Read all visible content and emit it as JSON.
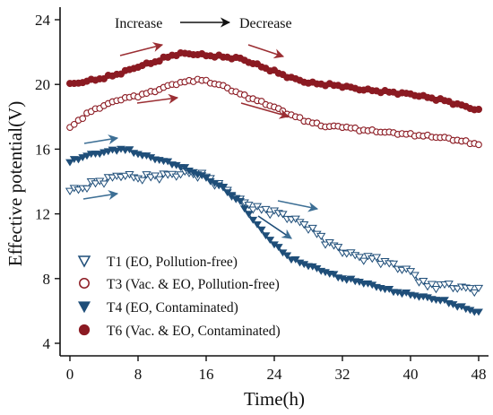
{
  "chart_data": {
    "type": "scatter",
    "xlabel": "Time(h)",
    "ylabel": "Effective potential(V)",
    "xlim": [
      -1,
      49
    ],
    "ylim": [
      3.4,
      25.1
    ],
    "xticks": [
      "0",
      "8",
      "16",
      "24",
      "32",
      "40",
      "48"
    ],
    "yticks": [
      "4",
      "8",
      "12",
      "16",
      "20",
      "24"
    ],
    "grid": false,
    "legend_position": "bottom-left",
    "annotations": {
      "increase": "Increase",
      "decrease": "Decrease"
    },
    "colors": {
      "blue": "#1f4e79",
      "red": "#8b1a22",
      "blue_arrow": "#3d6f95",
      "red_arrow": "#9b2e33"
    },
    "series": [
      {
        "name": "T1 (EO, Pollution-free)",
        "marker": "triangle-down-open",
        "color": "#1f4e79",
        "anchors": [
          [
            0,
            13.4
          ],
          [
            1,
            13.5
          ],
          [
            3,
            13.9
          ],
          [
            5,
            14.2
          ],
          [
            6,
            14.4
          ],
          [
            8,
            14.2
          ],
          [
            10,
            14.3
          ],
          [
            14,
            14.5
          ],
          [
            16,
            14.3
          ],
          [
            18,
            13.6
          ],
          [
            20,
            12.8
          ],
          [
            22,
            12.3
          ],
          [
            24,
            12.1
          ],
          [
            26,
            11.7
          ],
          [
            28,
            11.2
          ],
          [
            30,
            10.3
          ],
          [
            32,
            9.7
          ],
          [
            34,
            9.3
          ],
          [
            36,
            9.2
          ],
          [
            38,
            8.8
          ],
          [
            40,
            8.4
          ],
          [
            42,
            7.5
          ],
          [
            44,
            7.6
          ],
          [
            46,
            7.4
          ],
          [
            48,
            7.3
          ]
        ]
      },
      {
        "name": "T3 (Vac. & EO, Pollution-free)",
        "marker": "circle-open",
        "color": "#8b1a22",
        "anchors": [
          [
            0,
            17.3
          ],
          [
            2,
            18.2
          ],
          [
            4,
            18.7
          ],
          [
            6,
            19.1
          ],
          [
            8,
            19.3
          ],
          [
            10,
            19.6
          ],
          [
            12,
            20.0
          ],
          [
            14,
            20.2
          ],
          [
            15,
            20.3
          ],
          [
            16,
            20.2
          ],
          [
            18,
            19.9
          ],
          [
            20,
            19.4
          ],
          [
            22,
            19.0
          ],
          [
            24,
            18.6
          ],
          [
            26,
            18.1
          ],
          [
            28,
            17.7
          ],
          [
            30,
            17.4
          ],
          [
            32,
            17.4
          ],
          [
            34,
            17.2
          ],
          [
            36,
            17.1
          ],
          [
            38,
            17.0
          ],
          [
            40,
            16.9
          ],
          [
            42,
            16.8
          ],
          [
            44,
            16.7
          ],
          [
            46,
            16.5
          ],
          [
            48,
            16.3
          ]
        ]
      },
      {
        "name": "T4 (EO, Contaminated)",
        "marker": "triangle-down-filled",
        "color": "#1f4e79",
        "anchors": [
          [
            0,
            15.2
          ],
          [
            2,
            15.6
          ],
          [
            4,
            15.8
          ],
          [
            6,
            16.0
          ],
          [
            7,
            15.9
          ],
          [
            8,
            15.7
          ],
          [
            10,
            15.4
          ],
          [
            12,
            15.1
          ],
          [
            14,
            14.7
          ],
          [
            16,
            14.2
          ],
          [
            18,
            13.6
          ],
          [
            20,
            12.7
          ],
          [
            22,
            11.3
          ],
          [
            24,
            10.1
          ],
          [
            26,
            9.2
          ],
          [
            28,
            8.8
          ],
          [
            30,
            8.4
          ],
          [
            32,
            8.0
          ],
          [
            34,
            7.8
          ],
          [
            36,
            7.5
          ],
          [
            38,
            7.2
          ],
          [
            40,
            7.0
          ],
          [
            42,
            6.8
          ],
          [
            44,
            6.6
          ],
          [
            46,
            6.2
          ],
          [
            48,
            5.9
          ]
        ]
      },
      {
        "name": "T6 (Vac. & EO, Contaminated)",
        "marker": "circle-filled",
        "color": "#8b1a22",
        "anchors": [
          [
            0,
            20.0
          ],
          [
            2,
            20.2
          ],
          [
            4,
            20.4
          ],
          [
            6,
            20.7
          ],
          [
            8,
            21.1
          ],
          [
            10,
            21.4
          ],
          [
            12,
            21.8
          ],
          [
            13,
            21.9
          ],
          [
            14,
            21.9
          ],
          [
            16,
            21.8
          ],
          [
            18,
            21.7
          ],
          [
            20,
            21.6
          ],
          [
            22,
            21.2
          ],
          [
            24,
            20.8
          ],
          [
            26,
            20.4
          ],
          [
            28,
            20.1
          ],
          [
            30,
            20.0
          ],
          [
            32,
            19.9
          ],
          [
            34,
            19.7
          ],
          [
            36,
            19.6
          ],
          [
            38,
            19.5
          ],
          [
            40,
            19.4
          ],
          [
            42,
            19.2
          ],
          [
            44,
            19.0
          ],
          [
            46,
            18.7
          ],
          [
            48,
            18.4
          ]
        ]
      }
    ]
  }
}
